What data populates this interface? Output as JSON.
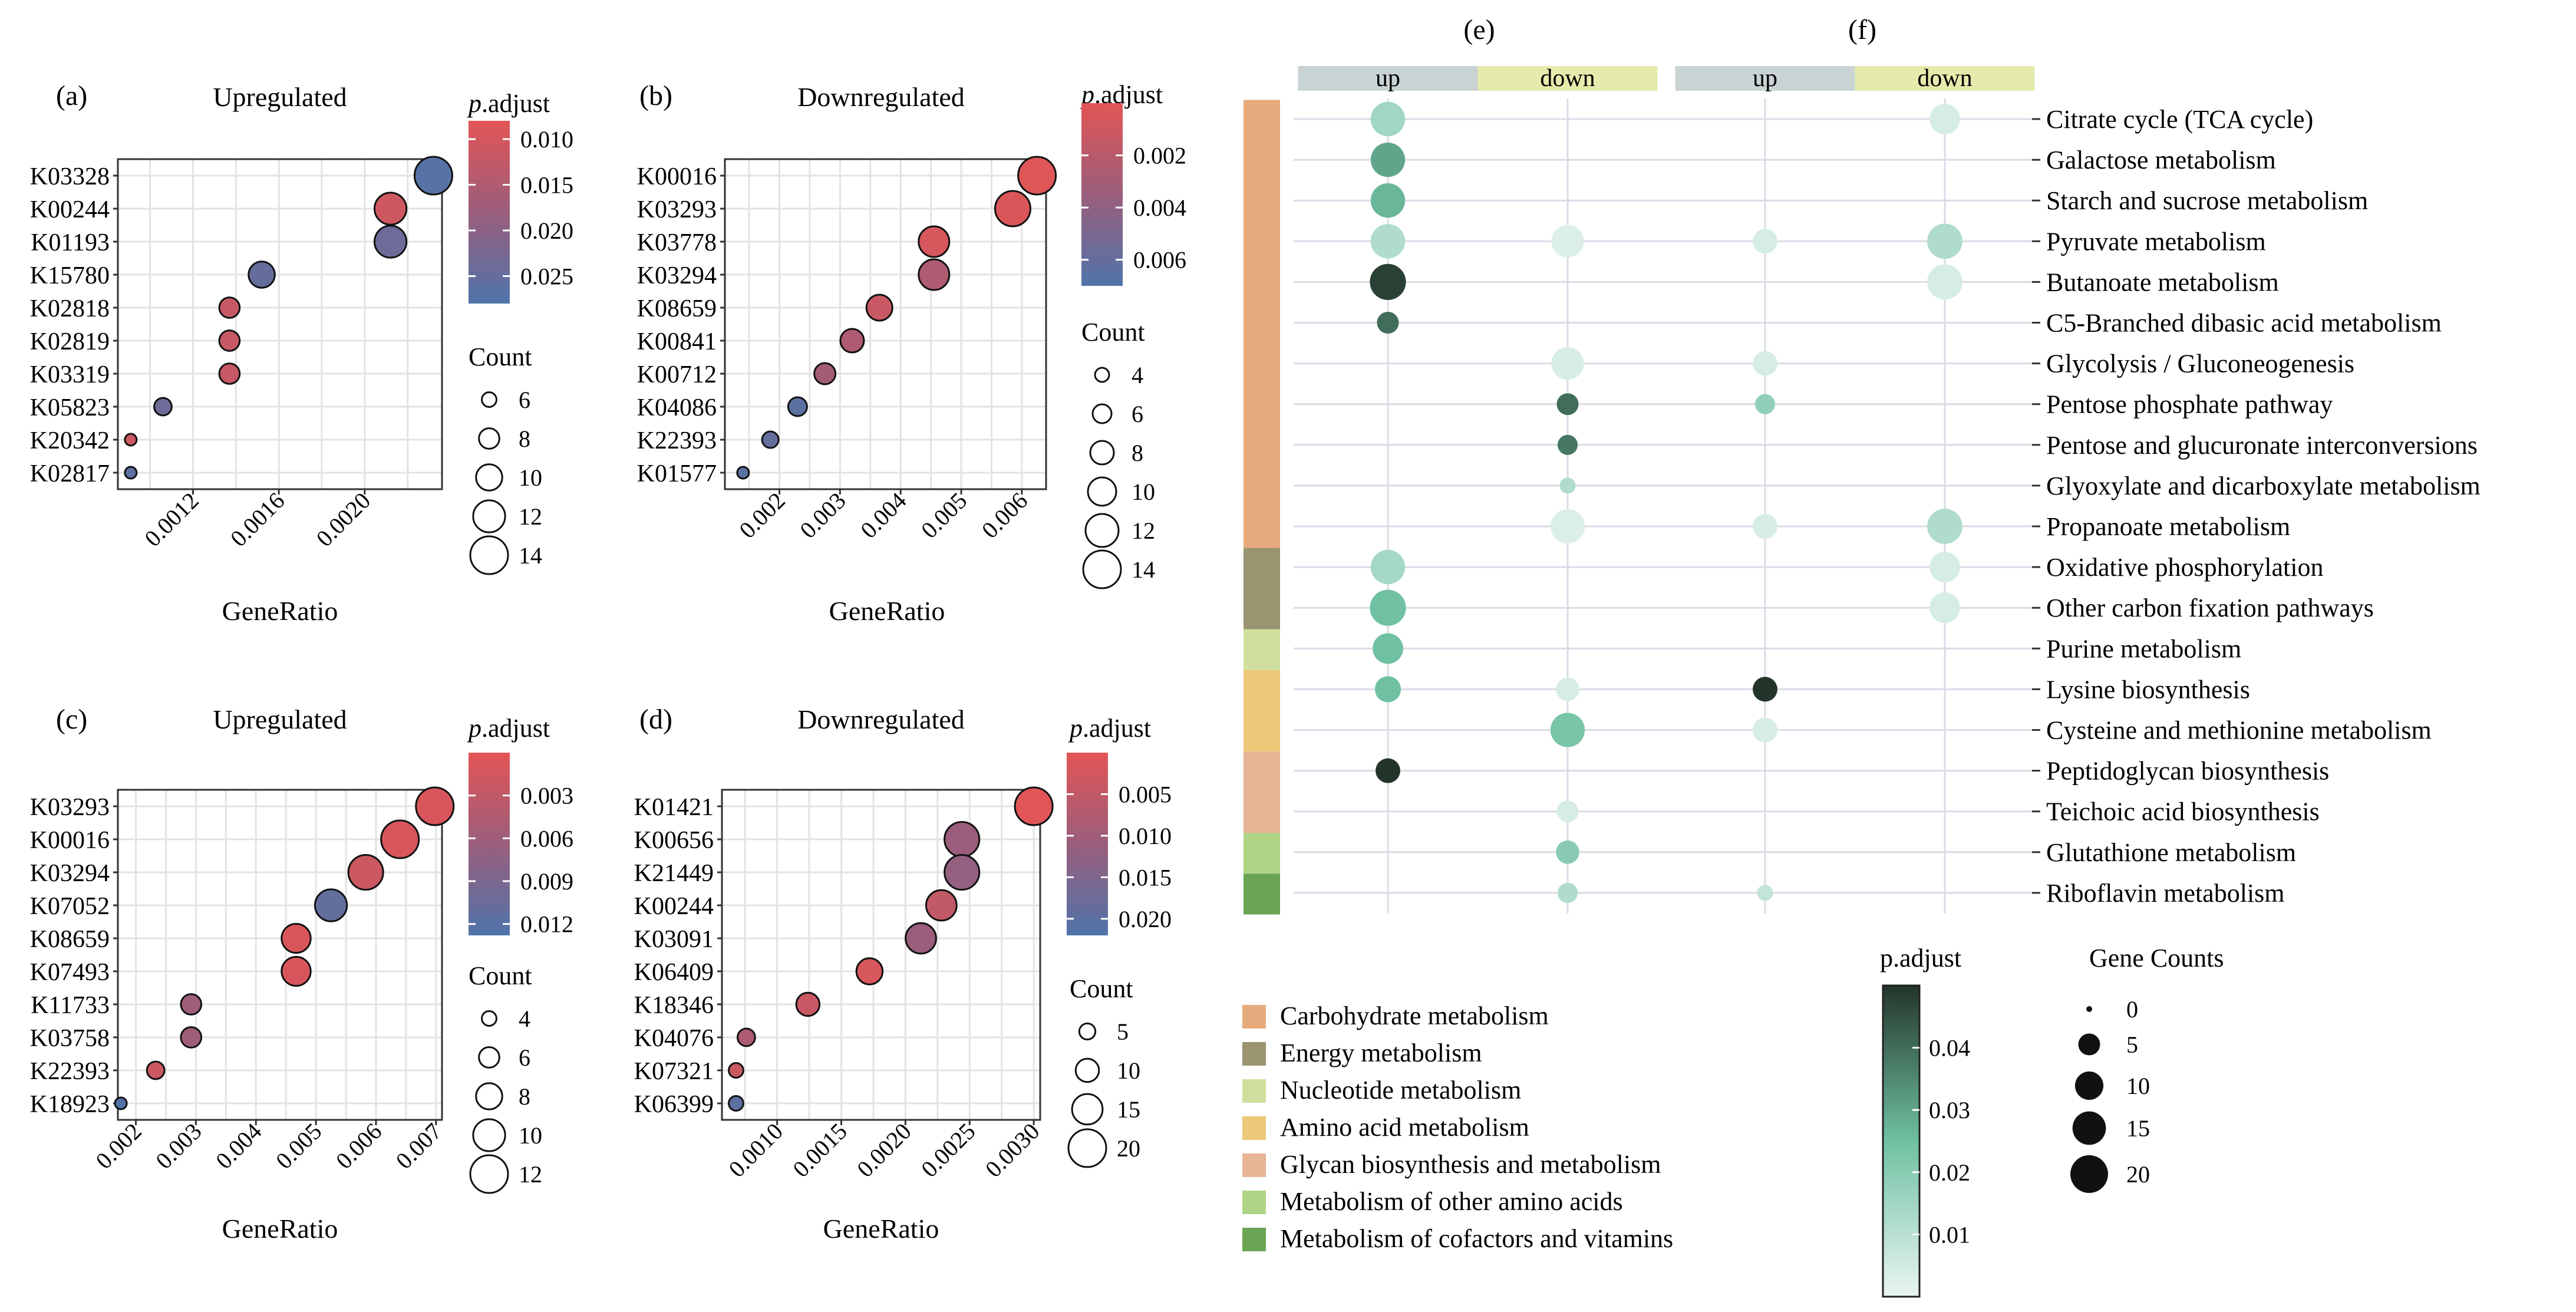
{
  "panels": [
    {
      "id": "a",
      "label": "(a)",
      "title": "Upregulated",
      "xlabel": "GeneRatio",
      "xlim": [
        0.00085,
        0.00236
      ],
      "xticks": [
        0.0012,
        0.0016,
        0.002
      ],
      "xtick_labels": [
        "0.0012",
        "0.0016",
        "0.0020"
      ],
      "categories": [
        "K03328",
        "K00244",
        "K01193",
        "K15780",
        "K02818",
        "K02819",
        "K03319",
        "K05823",
        "K20342",
        "K02817"
      ],
      "points": [
        {
          "term": "K03328",
          "x": 0.00232,
          "count": 14,
          "padj": 0.027
        },
        {
          "term": "K00244",
          "x": 0.00212,
          "count": 12,
          "padj": 0.011
        },
        {
          "term": "K01193",
          "x": 0.00212,
          "count": 12,
          "padj": 0.024
        },
        {
          "term": "K15780",
          "x": 0.00152,
          "count": 10,
          "padj": 0.025
        },
        {
          "term": "K02818",
          "x": 0.00137,
          "count": 8,
          "padj": 0.012
        },
        {
          "term": "K02819",
          "x": 0.00137,
          "count": 8,
          "padj": 0.012
        },
        {
          "term": "K03319",
          "x": 0.00137,
          "count": 8,
          "padj": 0.012
        },
        {
          "term": "K05823",
          "x": 0.00106,
          "count": 7,
          "padj": 0.024
        },
        {
          "term": "K20342",
          "x": 0.00091,
          "count": 5,
          "padj": 0.011
        },
        {
          "term": "K02817",
          "x": 0.00091,
          "count": 5,
          "padj": 0.026
        }
      ],
      "color_legend": {
        "title_italic": "p",
        "title_rest": ".adjust",
        "min": 0.008,
        "max": 0.028,
        "ticks": [
          0.01,
          0.015,
          0.02,
          0.025
        ],
        "tick_labels": [
          "0.010",
          "0.015",
          "0.020",
          "0.025"
        ],
        "reverse": false
      },
      "size_legend": {
        "title": "Count",
        "values": [
          6,
          8,
          10,
          12,
          14
        ],
        "labels": [
          "6",
          "8",
          "10",
          "12",
          "14"
        ],
        "smin": 5,
        "smax": 14
      }
    },
    {
      "id": "b",
      "label": "(b)",
      "title": "Downregulated",
      "xlabel": "GeneRatio",
      "xlim": [
        0.0011,
        0.0064
      ],
      "xticks": [
        0.002,
        0.003,
        0.004,
        0.005,
        0.006
      ],
      "xtick_labels": [
        "0.002",
        "0.003",
        "0.004",
        "0.005",
        "0.006"
      ],
      "categories": [
        "K00016",
        "K03293",
        "K03778",
        "K03294",
        "K08659",
        "K00841",
        "K00712",
        "K04086",
        "K22393",
        "K01577"
      ],
      "points": [
        {
          "term": "K00016",
          "x": 0.00625,
          "count": 14,
          "padj": 0.0002
        },
        {
          "term": "K03293",
          "x": 0.00585,
          "count": 13,
          "padj": 0.0004
        },
        {
          "term": "K03778",
          "x": 0.00455,
          "count": 11,
          "padj": 0.0006
        },
        {
          "term": "K03294",
          "x": 0.00455,
          "count": 11,
          "padj": 0.0025
        },
        {
          "term": "K08659",
          "x": 0.00365,
          "count": 9,
          "padj": 0.0013
        },
        {
          "term": "K00841",
          "x": 0.0032,
          "count": 8,
          "padj": 0.0025
        },
        {
          "term": "K00712",
          "x": 0.00275,
          "count": 7,
          "padj": 0.003
        },
        {
          "term": "K04086",
          "x": 0.0023,
          "count": 6,
          "padj": 0.0064
        },
        {
          "term": "K22393",
          "x": 0.00185,
          "count": 5,
          "padj": 0.006
        },
        {
          "term": "K01577",
          "x": 0.0014,
          "count": 3,
          "padj": 0.0065
        }
      ],
      "color_legend": {
        "title_italic": "p",
        "title_rest": ".adjust",
        "min": 0.0,
        "max": 0.007,
        "ticks": [
          0.002,
          0.004,
          0.006
        ],
        "tick_labels": [
          "0.002",
          "0.004",
          "0.006"
        ],
        "reverse": false
      },
      "size_legend": {
        "title": "Count",
        "values": [
          4,
          6,
          8,
          10,
          12,
          14
        ],
        "labels": [
          "4",
          "6",
          "8",
          "10",
          "12",
          "14"
        ],
        "smin": 3,
        "smax": 14
      }
    },
    {
      "id": "c",
      "label": "(c)",
      "title": "Upregulated",
      "xlabel": "GeneRatio",
      "xlim": [
        0.0017,
        0.0071
      ],
      "xticks": [
        0.002,
        0.003,
        0.004,
        0.005,
        0.006,
        0.007
      ],
      "xtick_labels": [
        "0.002",
        "0.003",
        "0.004",
        "0.005",
        "0.006",
        "0.007"
      ],
      "categories": [
        "K03293",
        "K00016",
        "K03294",
        "K07052",
        "K08659",
        "K07493",
        "K11733",
        "K03758",
        "K22393",
        "K18923"
      ],
      "points": [
        {
          "term": "K03293",
          "x": 0.00698,
          "count": 12,
          "padj": 0.001
        },
        {
          "term": "K00016",
          "x": 0.0064,
          "count": 12,
          "padj": 0.001
        },
        {
          "term": "K03294",
          "x": 0.00583,
          "count": 11,
          "padj": 0.002
        },
        {
          "term": "K07052",
          "x": 0.00525,
          "count": 10,
          "padj": 0.011
        },
        {
          "term": "K08659",
          "x": 0.00467,
          "count": 9,
          "padj": 0.001
        },
        {
          "term": "K07493",
          "x": 0.00467,
          "count": 9,
          "padj": 0.001
        },
        {
          "term": "K11733",
          "x": 0.00292,
          "count": 6,
          "padj": 0.006
        },
        {
          "term": "K03758",
          "x": 0.00292,
          "count": 6,
          "padj": 0.006
        },
        {
          "term": "K22393",
          "x": 0.00233,
          "count": 5,
          "padj": 0.002
        },
        {
          "term": "K18923",
          "x": 0.00175,
          "count": 3,
          "padj": 0.0125
        }
      ],
      "color_legend": {
        "title_italic": "p",
        "title_rest": ".adjust",
        "min": 0.0,
        "max": 0.0128,
        "ticks": [
          0.003,
          0.006,
          0.009,
          0.012
        ],
        "tick_labels": [
          "0.003",
          "0.006",
          "0.009",
          "0.012"
        ],
        "reverse": false
      },
      "size_legend": {
        "title": "Count",
        "values": [
          4,
          6,
          8,
          10,
          12
        ],
        "labels": [
          "4",
          "6",
          "8",
          "10",
          "12"
        ],
        "smin": 3,
        "smax": 12
      }
    },
    {
      "id": "d",
      "label": "(d)",
      "title": "Downregulated",
      "xlabel": "GeneRatio",
      "xlim": [
        0.00057,
        0.00305
      ],
      "xticks": [
        0.001,
        0.0015,
        0.002,
        0.0025,
        0.003
      ],
      "xtick_labels": [
        "0.0010",
        "0.0015",
        "0.0020",
        "0.0025",
        "0.0030"
      ],
      "categories": [
        "K01421",
        "K00656",
        "K21449",
        "K00244",
        "K03091",
        "K06409",
        "K18346",
        "K04076",
        "K07321",
        "K06399"
      ],
      "points": [
        {
          "term": "K01421",
          "x": 0.003,
          "count": 20,
          "padj": 0.0005
        },
        {
          "term": "K00656",
          "x": 0.00244,
          "count": 18,
          "padj": 0.011
        },
        {
          "term": "K21449",
          "x": 0.00244,
          "count": 18,
          "padj": 0.012
        },
        {
          "term": "K00244",
          "x": 0.00228,
          "count": 15,
          "padj": 0.005
        },
        {
          "term": "K03091",
          "x": 0.00212,
          "count": 15,
          "padj": 0.011
        },
        {
          "term": "K06409",
          "x": 0.00172,
          "count": 12,
          "padj": 0.002
        },
        {
          "term": "K18346",
          "x": 0.00124,
          "count": 10,
          "padj": 0.004
        },
        {
          "term": "K04076",
          "x": 0.00076,
          "count": 6,
          "padj": 0.008
        },
        {
          "term": "K07321",
          "x": 0.00068,
          "count": 4,
          "padj": 0.004
        },
        {
          "term": "K06399",
          "x": 0.00068,
          "count": 4,
          "padj": 0.02
        }
      ],
      "color_legend": {
        "title_italic": "p",
        "title_rest": ".adjust",
        "min": 0.0,
        "max": 0.022,
        "ticks": [
          0.005,
          0.01,
          0.015,
          0.02
        ],
        "tick_labels": [
          "0.005",
          "0.010",
          "0.015",
          "0.020"
        ],
        "reverse": false
      },
      "size_legend": {
        "title": "Count",
        "values": [
          5,
          10,
          15,
          20
        ],
        "labels": [
          "5",
          "10",
          "15",
          "20"
        ],
        "smin": 2,
        "smax": 20
      }
    }
  ],
  "pathway_chart": {
    "labels": [
      "(e)",
      "(f)"
    ],
    "column_headers": [
      "up",
      "down",
      "up",
      "down"
    ],
    "header_colors": [
      "#c9d3d3",
      "#e6ebad",
      "#c9d3d3",
      "#e6ebad"
    ],
    "pathways": [
      "Citrate cycle (TCA cycle)",
      "Galactose metabolism",
      "Starch and sucrose metabolism",
      "Pyruvate metabolism",
      "Butanoate metabolism",
      "C5-Branched dibasic acid metabolism",
      "Glycolysis / Gluconeogenesis",
      "Pentose phosphate pathway",
      "Pentose and glucuronate interconversions",
      "Glyoxylate and dicarboxylate metabolism",
      "Propanoate metabolism",
      "Oxidative phosphorylation",
      "Other carbon fixation pathways",
      "Purine metabolism",
      "Lysine biosynthesis",
      "Cysteine and methionine metabolism",
      "Peptidoglycan biosynthesis",
      "Teichoic acid biosynthesis",
      "Glutathione metabolism",
      "Riboflavin metabolism"
    ],
    "categories": [
      {
        "name": "Carbohydrate metabolism",
        "color": "#e6ab7c",
        "rows": 11
      },
      {
        "name": "Energy metabolism",
        "color": "#9a9470",
        "rows": 2
      },
      {
        "name": "Nucleotide metabolism",
        "color": "#cfe09e",
        "rows": 1
      },
      {
        "name": "Amino acid metabolism",
        "color": "#ecc878",
        "rows": 2
      },
      {
        "name": "Glycan biosynthesis and metabolism",
        "color": "#e8b496",
        "rows": 2
      },
      {
        "name": "Metabolism of other amino acids",
        "color": "#afd485",
        "rows": 1
      },
      {
        "name": "Metabolism of cofactors and vitamins",
        "color": "#6aa454",
        "rows": 1
      }
    ],
    "dots": [
      {
        "row": 0,
        "col": 0,
        "count": 16,
        "padj": 0.015
      },
      {
        "row": 1,
        "col": 0,
        "count": 16,
        "padj": 0.03
      },
      {
        "row": 2,
        "col": 0,
        "count": 16,
        "padj": 0.027
      },
      {
        "row": 3,
        "col": 0,
        "count": 16,
        "padj": 0.012
      },
      {
        "row": 4,
        "col": 0,
        "count": 18,
        "padj": 0.048
      },
      {
        "row": 5,
        "col": 0,
        "count": 5,
        "padj": 0.04
      },
      {
        "row": 11,
        "col": 0,
        "count": 16,
        "padj": 0.014
      },
      {
        "row": 12,
        "col": 0,
        "count": 18,
        "padj": 0.025
      },
      {
        "row": 13,
        "col": 0,
        "count": 12,
        "padj": 0.025
      },
      {
        "row": 14,
        "col": 0,
        "count": 8,
        "padj": 0.025
      },
      {
        "row": 16,
        "col": 0,
        "count": 7,
        "padj": 0.05
      },
      {
        "row": 3,
        "col": 1,
        "count": 14,
        "padj": 0.003
      },
      {
        "row": 6,
        "col": 1,
        "count": 14,
        "padj": 0.004
      },
      {
        "row": 7,
        "col": 1,
        "count": 5,
        "padj": 0.04
      },
      {
        "row": 8,
        "col": 1,
        "count": 4,
        "padj": 0.038
      },
      {
        "row": 9,
        "col": 1,
        "count": 2,
        "padj": 0.012
      },
      {
        "row": 10,
        "col": 1,
        "count": 16,
        "padj": 0.003
      },
      {
        "row": 14,
        "col": 1,
        "count": 6,
        "padj": 0.004
      },
      {
        "row": 15,
        "col": 1,
        "count": 16,
        "padj": 0.023
      },
      {
        "row": 17,
        "col": 1,
        "count": 5,
        "padj": 0.004
      },
      {
        "row": 18,
        "col": 1,
        "count": 6,
        "padj": 0.02
      },
      {
        "row": 19,
        "col": 1,
        "count": 4,
        "padj": 0.012
      },
      {
        "row": 3,
        "col": 2,
        "count": 7,
        "padj": 0.004
      },
      {
        "row": 6,
        "col": 2,
        "count": 7,
        "padj": 0.004
      },
      {
        "row": 7,
        "col": 2,
        "count": 4,
        "padj": 0.018
      },
      {
        "row": 10,
        "col": 2,
        "count": 7,
        "padj": 0.004
      },
      {
        "row": 14,
        "col": 2,
        "count": 7,
        "padj": 0.05
      },
      {
        "row": 15,
        "col": 2,
        "count": 7,
        "padj": 0.004
      },
      {
        "row": 19,
        "col": 2,
        "count": 2,
        "padj": 0.008
      },
      {
        "row": 0,
        "col": 3,
        "count": 12,
        "padj": 0.004
      },
      {
        "row": 3,
        "col": 3,
        "count": 17,
        "padj": 0.012
      },
      {
        "row": 4,
        "col": 3,
        "count": 17,
        "padj": 0.004
      },
      {
        "row": 10,
        "col": 3,
        "count": 17,
        "padj": 0.012
      },
      {
        "row": 11,
        "col": 3,
        "count": 12,
        "padj": 0.004
      },
      {
        "row": 12,
        "col": 3,
        "count": 12,
        "padj": 0.004
      }
    ],
    "color_legend": {
      "title": "p.adjust",
      "min": 0.0,
      "max": 0.05,
      "ticks": [
        0.01,
        0.02,
        0.03,
        0.04
      ],
      "tick_labels": [
        "0.01",
        "0.02",
        "0.03",
        "0.04"
      ]
    },
    "size_legend": {
      "title": "Gene Counts",
      "values": [
        0,
        5,
        10,
        15,
        20
      ],
      "labels": [
        "0",
        "5",
        "10",
        "15",
        "20"
      ]
    }
  }
}
